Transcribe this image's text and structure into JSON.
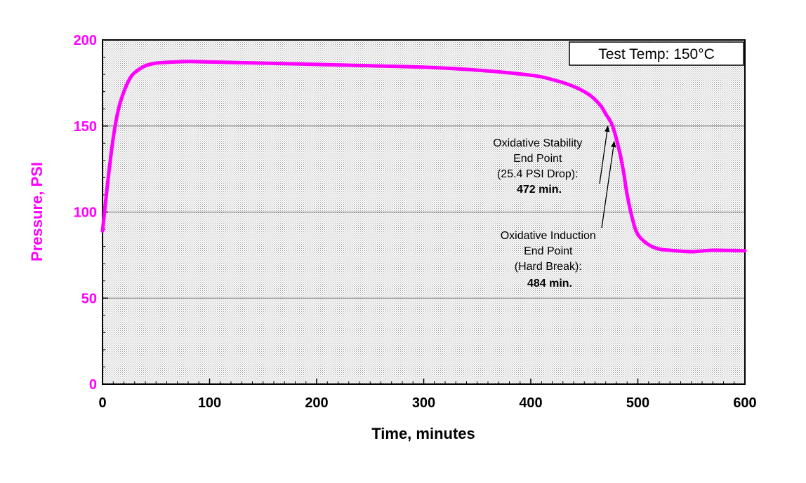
{
  "chart_data": {
    "type": "line",
    "title": "",
    "xlabel": "Time, minutes",
    "ylabel": "Pressure, PSI",
    "xlim": [
      0,
      600
    ],
    "ylim": [
      0,
      200
    ],
    "xticks": [
      "0",
      "100",
      "200",
      "300",
      "400",
      "500",
      "600"
    ],
    "yticks": [
      "0",
      "50",
      "100",
      "150",
      "200"
    ],
    "grid": "horizontal",
    "legend_box": "Test Temp: 150°C",
    "series": [
      {
        "color": "#ff00ff",
        "x": [
          0,
          5,
          10,
          15,
          20,
          25,
          30,
          40,
          50,
          60,
          80,
          100,
          150,
          200,
          250,
          300,
          350,
          400,
          420,
          440,
          455,
          465,
          470,
          475,
          478,
          481,
          484,
          487,
          490,
          495,
          500,
          510,
          520,
          530,
          550,
          570,
          600
        ],
        "y": [
          89,
          118,
          143,
          160,
          170,
          177,
          181,
          185,
          186.5,
          187,
          187.5,
          187.2,
          186.5,
          185.8,
          185,
          184.2,
          182.5,
          179.5,
          177,
          173,
          168,
          162,
          157,
          152,
          147,
          140,
          132,
          122,
          110,
          96,
          87,
          81,
          78.5,
          77.8,
          77,
          77.8,
          77.5
        ]
      }
    ],
    "annotations": [
      {
        "lines": [
          "Oxidative Stability",
          "End Point",
          "(25.4 PSI Drop):",
          "472 min."
        ],
        "arrow_to": [
          472,
          150
        ]
      },
      {
        "lines": [
          "Oxidative Induction",
          "End Point",
          "(Hard Break):",
          "484 min."
        ],
        "arrow_to": [
          478,
          141
        ]
      }
    ]
  }
}
